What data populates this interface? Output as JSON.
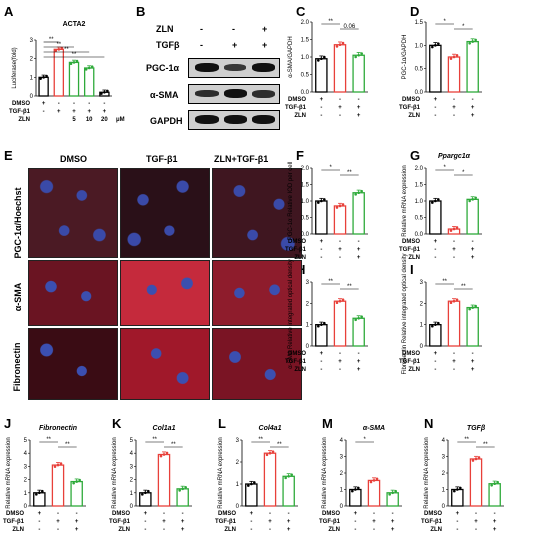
{
  "panel_letters": {
    "A": "A",
    "B": "B",
    "C": "C",
    "D": "D",
    "E": "E",
    "F": "F",
    "G": "G",
    "H": "H",
    "I": "I",
    "J": "J",
    "K": "K",
    "L": "L",
    "M": "M",
    "N": "N"
  },
  "legend_rows": {
    "dmso": "DMSO",
    "tgf": "TGF-β1",
    "zln": "ZLN"
  },
  "panel_A": {
    "gene": "ACTA2",
    "ylabel": "Luciferase(fold)",
    "zln_doses": [
      "",
      "",
      "5",
      "10",
      "20"
    ],
    "unit": "μM",
    "dmso": [
      "+",
      "-",
      "-",
      "-",
      "-"
    ],
    "tgf": [
      "-",
      "+",
      "+",
      "+",
      "+"
    ]
  },
  "panel_B": {
    "zln_label": "ZLN",
    "tgf_label": "TGFβ",
    "zln": [
      "-",
      "-",
      "+"
    ],
    "tgf": [
      "-",
      "+",
      "+"
    ],
    "proteins": [
      "PGC-1α",
      "α-SMA",
      "GAPDH"
    ]
  },
  "panel_E": {
    "cols": [
      "DMSO",
      "TGF-β1",
      "ZLN+TGF-β1"
    ],
    "rows": [
      "PGC-1α/Hoechst",
      "α-SMA",
      "Fibronectin"
    ]
  },
  "chart_data": [
    {
      "id": "A",
      "type": "bar",
      "categories": [
        "DMSO",
        "TGF-β1",
        "ZLN 5",
        "ZLN 10",
        "ZLN 20"
      ],
      "values": [
        1.0,
        2.5,
        1.8,
        1.5,
        0.2
      ],
      "ylim": [
        0,
        3
      ],
      "yticks": [
        "0",
        "1",
        "2",
        "3"
      ],
      "colors": [
        "#000000",
        "#e8403a",
        "#2eaa3a",
        "#2eaa3a",
        "#000000"
      ],
      "ylabel": "Luciferase(fold)",
      "sig": [
        "**",
        "**",
        "**",
        "**"
      ]
    },
    {
      "id": "C",
      "type": "bar",
      "categories": [
        "DMSO",
        "TGF-β1",
        "TGF-β1+ZLN"
      ],
      "values": [
        0.95,
        1.35,
        1.05
      ],
      "ylim": [
        0,
        2.0
      ],
      "yticks": [
        "0.0",
        "0.5",
        "1.0",
        "1.5",
        "2.0"
      ],
      "colors": [
        "#000000",
        "#e8403a",
        "#2eaa3a"
      ],
      "ylabel": "α-SMA/GAPDH",
      "sig": [
        "**",
        "0.06"
      ]
    },
    {
      "id": "D",
      "type": "bar",
      "categories": [
        "DMSO",
        "TGF-β1",
        "TGF-β1+ZLN"
      ],
      "values": [
        1.0,
        0.75,
        1.08
      ],
      "ylim": [
        0,
        1.5
      ],
      "yticks": [
        "0.0",
        "0.5",
        "1.0",
        "1.5"
      ],
      "colors": [
        "#000000",
        "#e8403a",
        "#2eaa3a"
      ],
      "ylabel": "PGC-1α/GAPDH",
      "sig": [
        "*",
        "*"
      ]
    },
    {
      "id": "F",
      "type": "bar",
      "categories": [
        "DMSO",
        "TGF-β1",
        "TGF-β1+ZLN"
      ],
      "values": [
        1.0,
        0.85,
        1.25
      ],
      "ylim": [
        0,
        2.0
      ],
      "yticks": [
        "0.0",
        "0.5",
        "1.0",
        "1.5",
        "2.0"
      ],
      "colors": [
        "#000000",
        "#e8403a",
        "#2eaa3a"
      ],
      "ylabel": "PGC-1α Relative IOD per cell",
      "sig": [
        "*",
        "**"
      ]
    },
    {
      "id": "G",
      "type": "bar",
      "title": "Ppargc1α",
      "categories": [
        "DMSO",
        "TGF-β1",
        "TGF-β1+ZLN"
      ],
      "values": [
        1.0,
        0.15,
        1.05
      ],
      "ylim": [
        0,
        2.0
      ],
      "yticks": [
        "0.0",
        "0.5",
        "1.0",
        "1.5",
        "2.0"
      ],
      "colors": [
        "#000000",
        "#e8403a",
        "#2eaa3a"
      ],
      "ylabel": "Relative mRNA expression",
      "sig": [
        "*",
        "*"
      ]
    },
    {
      "id": "H",
      "type": "bar",
      "categories": [
        "DMSO",
        "TGF-β1",
        "TGF-β1+ZLN"
      ],
      "values": [
        1.0,
        2.1,
        1.3
      ],
      "ylim": [
        0,
        3
      ],
      "yticks": [
        "0",
        "1",
        "2",
        "3"
      ],
      "colors": [
        "#000000",
        "#e8403a",
        "#2eaa3a"
      ],
      "ylabel": "α-SMA Relative integrated optical density",
      "sig": [
        "**",
        "**"
      ]
    },
    {
      "id": "I",
      "type": "bar",
      "categories": [
        "DMSO",
        "TGF-β1",
        "TGF-β1+ZLN"
      ],
      "values": [
        1.0,
        2.1,
        1.8
      ],
      "ylim": [
        0,
        3
      ],
      "yticks": [
        "0",
        "1",
        "2",
        "3"
      ],
      "colors": [
        "#000000",
        "#e8403a",
        "#2eaa3a"
      ],
      "ylabel": "Fibronectin Relative integrated optical density",
      "sig": [
        "**",
        "**"
      ]
    },
    {
      "id": "J",
      "type": "bar",
      "title": "Fibronectin",
      "categories": [
        "DMSO",
        "TGF-β1",
        "TGF-β1+ZLN"
      ],
      "values": [
        1.0,
        3.1,
        1.85
      ],
      "ylim": [
        0,
        5
      ],
      "yticks": [
        "0",
        "1",
        "2",
        "3",
        "4",
        "5"
      ],
      "colors": [
        "#000000",
        "#e8403a",
        "#2eaa3a"
      ],
      "ylabel": "Relative mRNA expression",
      "sig": [
        "**",
        "**"
      ]
    },
    {
      "id": "K",
      "type": "bar",
      "title": "Col1a1",
      "categories": [
        "DMSO",
        "TGF-β1",
        "TGF-β1+ZLN"
      ],
      "values": [
        1.0,
        3.9,
        1.3
      ],
      "ylim": [
        0,
        5
      ],
      "yticks": [
        "0",
        "1",
        "2",
        "3",
        "4",
        "5"
      ],
      "colors": [
        "#000000",
        "#e8403a",
        "#2eaa3a"
      ],
      "ylabel": "Relative mRNA expression",
      "sig": [
        "**",
        "**"
      ]
    },
    {
      "id": "L",
      "type": "bar",
      "title": "Col4a1",
      "categories": [
        "DMSO",
        "TGF-β1",
        "TGF-β1+ZLN"
      ],
      "values": [
        1.0,
        2.4,
        1.35
      ],
      "ylim": [
        0,
        3
      ],
      "yticks": [
        "0",
        "1",
        "2",
        "3"
      ],
      "colors": [
        "#000000",
        "#e8403a",
        "#2eaa3a"
      ],
      "ylabel": "Relative mRNA expression",
      "sig": [
        "**",
        "**"
      ]
    },
    {
      "id": "M",
      "type": "bar",
      "title": "α-SMA",
      "categories": [
        "DMSO",
        "TGF-β1",
        "TGF-β1+ZLN"
      ],
      "values": [
        1.0,
        1.55,
        0.8
      ],
      "ylim": [
        0,
        4
      ],
      "yticks": [
        "0",
        "1",
        "2",
        "3",
        "4"
      ],
      "colors": [
        "#000000",
        "#e8403a",
        "#2eaa3a"
      ],
      "ylabel": "Relative mRNA expression",
      "sig": [
        "*"
      ]
    },
    {
      "id": "N",
      "type": "bar",
      "title": "TGFβ",
      "categories": [
        "DMSO",
        "TGF-β1",
        "TGF-β1+ZLN"
      ],
      "values": [
        1.0,
        2.85,
        1.35
      ],
      "ylim": [
        0,
        4
      ],
      "yticks": [
        "0",
        "1",
        "2",
        "3",
        "4"
      ],
      "colors": [
        "#000000",
        "#e8403a",
        "#2eaa3a"
      ],
      "ylabel": "Relative mRNA expression",
      "sig": [
        "**",
        "**"
      ]
    }
  ],
  "signs3": {
    "dmso": [
      "+",
      "-",
      "-"
    ],
    "tgf": [
      "-",
      "+",
      "+"
    ],
    "zln": [
      "-",
      "-",
      "+"
    ]
  }
}
